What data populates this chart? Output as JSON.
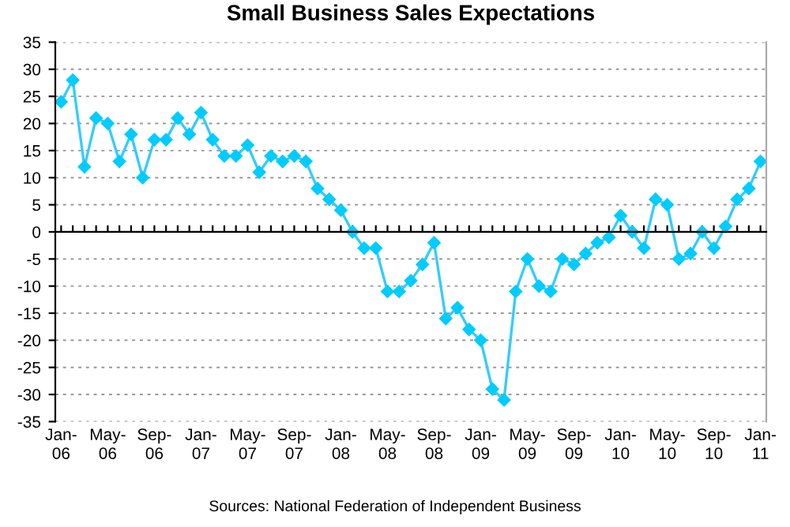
{
  "chart_data": {
    "type": "line",
    "title": "Small Business Sales Expectations",
    "categories": [
      "Jan-\n06",
      null,
      null,
      null,
      "May-\n06",
      null,
      null,
      null,
      "Sep-\n06",
      null,
      null,
      null,
      "Jan-\n07",
      null,
      null,
      null,
      "May-\n07",
      null,
      null,
      null,
      "Sep-\n07",
      null,
      null,
      null,
      "Jan-\n08",
      null,
      null,
      null,
      "May-\n08",
      null,
      null,
      null,
      "Sep-\n08",
      null,
      null,
      null,
      "Jan-\n09",
      null,
      null,
      null,
      "May-\n09",
      null,
      null,
      null,
      "Sep-\n09",
      null,
      null,
      null,
      "Jan-\n10",
      null,
      null,
      null,
      "May-\n10",
      null,
      null,
      null,
      "Sep-\n10",
      null,
      null,
      null,
      "Jan-\n11"
    ],
    "series": [
      {
        "color": "#33ccff",
        "values": [
          24,
          28,
          12,
          21,
          20,
          13,
          18,
          10,
          17,
          17,
          21,
          18,
          22,
          17,
          14,
          14,
          16,
          11,
          14,
          13,
          14,
          13,
          8,
          6,
          4,
          0,
          -3,
          -3,
          -11,
          -11,
          -9,
          -6,
          -2,
          -16,
          -14,
          -18,
          -20,
          -29,
          -31,
          -11,
          -5,
          -10,
          -11,
          -5,
          -6,
          -4,
          -2,
          -1,
          3,
          0,
          -3,
          6,
          5,
          -5,
          -4,
          0,
          -3,
          1,
          6,
          8,
          13
        ]
      }
    ],
    "ylim": [
      -35,
      35
    ],
    "yticks": [
      -35,
      -30,
      -25,
      -20,
      -15,
      -10,
      -5,
      0,
      5,
      10,
      15,
      20,
      25,
      30,
      35
    ],
    "grid": "y",
    "marker": "diamond",
    "line_style": "solid",
    "legend": false,
    "annotations": [
      "Sources: National Federation of Independent Business"
    ]
  }
}
